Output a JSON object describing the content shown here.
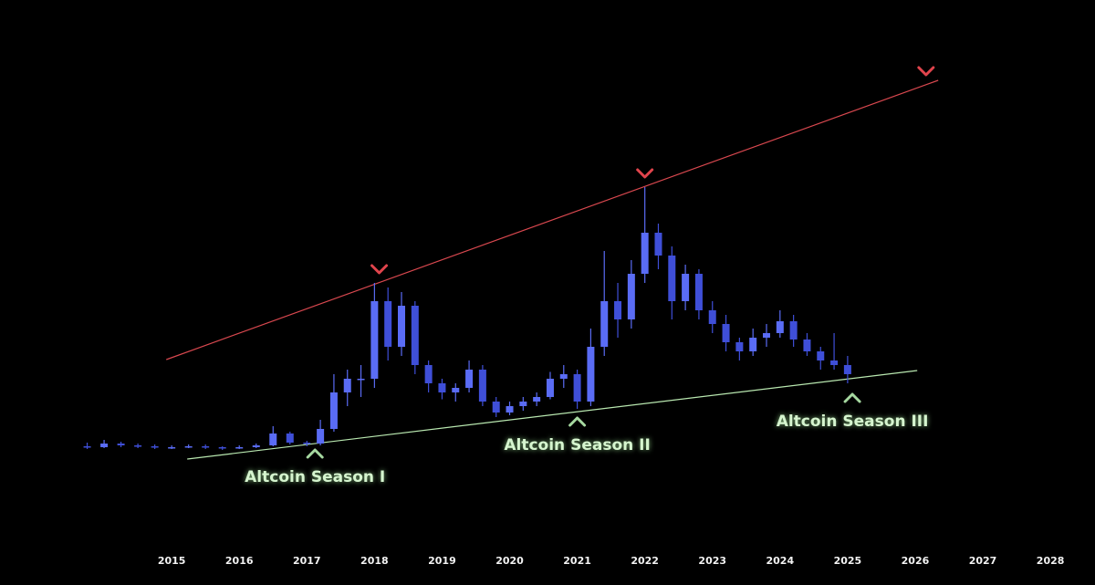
{
  "chart_data": {
    "type": "candlestick",
    "x": [
      2013.75,
      2014.0,
      2014.25,
      2014.5,
      2014.75,
      2015.0,
      2015.25,
      2015.5,
      2015.75,
      2016.0,
      2016.25,
      2016.5,
      2016.75,
      2017.0,
      2017.2,
      2017.4,
      2017.6,
      2017.8,
      2018.0,
      2018.2,
      2018.4,
      2018.6,
      2018.8,
      2019.0,
      2019.2,
      2019.4,
      2019.6,
      2019.8,
      2020.0,
      2020.2,
      2020.4,
      2020.6,
      2020.8,
      2021.0,
      2021.2,
      2021.4,
      2021.6,
      2021.8,
      2022.0,
      2022.2,
      2022.4,
      2022.6,
      2022.8,
      2023.0,
      2023.2,
      2023.4,
      2023.6,
      2023.8,
      2024.0,
      2024.2,
      2024.4,
      2024.6,
      2024.8,
      2025.0
    ],
    "open": [
      14.2,
      14,
      14.8,
      14.4,
      14.2,
      14,
      14,
      14.2,
      14,
      13.8,
      14,
      14.4,
      17,
      15,
      14.8,
      18,
      26,
      29,
      29,
      46,
      36,
      45,
      32,
      28,
      26,
      27,
      31,
      24,
      21.6,
      23,
      24,
      25,
      29,
      30,
      24,
      36,
      46,
      42,
      52,
      61,
      56,
      46,
      52,
      44,
      41,
      37,
      35,
      38,
      39,
      41.6,
      37.6,
      35,
      33,
      32
    ],
    "high": [
      15,
      15.6,
      15.2,
      14.8,
      14.6,
      14.4,
      14.6,
      14.6,
      14.2,
      14.4,
      14.8,
      18.6,
      17.4,
      15.4,
      20,
      30,
      31,
      32,
      50,
      49,
      48,
      46,
      33,
      29,
      28,
      33,
      32,
      25,
      24,
      25,
      26,
      30.5,
      32,
      31,
      40,
      57,
      50,
      55,
      71,
      63,
      58,
      54,
      53,
      46,
      43,
      38,
      40,
      41,
      44,
      43,
      39,
      36,
      39,
      34
    ],
    "low": [
      13.6,
      13.8,
      14,
      13.8,
      13.6,
      13.6,
      13.8,
      13.6,
      13.4,
      13.6,
      13.8,
      14.2,
      14.6,
      14.2,
      14.4,
      17.4,
      23,
      25,
      27,
      33,
      34,
      30,
      26,
      24.5,
      24,
      26,
      23,
      20.6,
      21,
      22,
      23,
      24.5,
      27,
      22.4,
      23,
      34,
      38,
      40,
      50,
      53,
      42,
      44,
      42,
      39,
      35,
      33,
      34,
      36,
      38,
      36,
      34,
      31,
      31,
      28
    ],
    "close": [
      14,
      14.8,
      14.4,
      14.2,
      14,
      14,
      14.2,
      14,
      13.8,
      14,
      14.4,
      17,
      15,
      14.8,
      18,
      26,
      29,
      29,
      46,
      36,
      45,
      32,
      28,
      26,
      27,
      31,
      24,
      21.6,
      23,
      24,
      25,
      29,
      30,
      24,
      36,
      46,
      42,
      52,
      61,
      56,
      46,
      52,
      44,
      41,
      37,
      35,
      38,
      39,
      41.6,
      37.6,
      35,
      33,
      32,
      30
    ],
    "up_color": "#5a6cf5",
    "down_color": "#3f4fd8",
    "xlim": [
      2012.46,
      2028.66
    ],
    "ylim": [
      0,
      100
    ],
    "xticks": [
      2015,
      2016,
      2017,
      2018,
      2019,
      2020,
      2021,
      2022,
      2023,
      2024,
      2025,
      2026,
      2027,
      2028
    ],
    "trendlines": [
      {
        "color": "#d9484f",
        "x": [
          2014.92,
          2026.34
        ],
        "y": [
          33.2,
          94.4
        ]
      },
      {
        "color": "#b9e8b0",
        "x": [
          2015.23,
          2026.03
        ],
        "y": [
          11.4,
          30.8
        ]
      }
    ],
    "markers": [
      {
        "direction": "down",
        "color": "#e0444c",
        "x": 2018.07,
        "y": 53
      },
      {
        "direction": "down",
        "color": "#e0444c",
        "x": 2022.0,
        "y": 74
      },
      {
        "direction": "down",
        "color": "#e0444c",
        "x": 2026.16,
        "y": 96.4
      },
      {
        "direction": "up",
        "color": "#a6d8a0",
        "x": 2017.12,
        "y": 12.6,
        "label": "Altcoin Season I"
      },
      {
        "direction": "up",
        "color": "#a6d8a0",
        "x": 2021.0,
        "y": 19.6,
        "label": "Altcoin Season II"
      },
      {
        "direction": "up",
        "color": "#a6d8a0",
        "x": 2025.07,
        "y": 24.8,
        "label": "Altcoin Season III"
      }
    ]
  }
}
